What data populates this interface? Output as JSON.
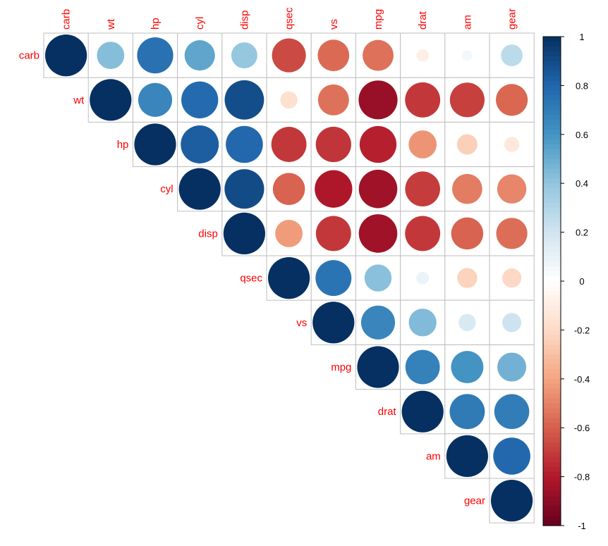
{
  "chart_data": {
    "type": "heatmap",
    "subtype": "corrplot-circle-upper",
    "title": "",
    "variables": [
      "carb",
      "wt",
      "hp",
      "cyl",
      "disp",
      "qsec",
      "vs",
      "mpg",
      "drat",
      "am",
      "gear"
    ],
    "matrix": [
      [
        1.0,
        0.43,
        0.75,
        0.53,
        0.39,
        -0.66,
        -0.57,
        -0.55,
        -0.09,
        0.06,
        0.27
      ],
      [
        0.43,
        1.0,
        0.66,
        0.78,
        0.89,
        -0.17,
        -0.55,
        -0.87,
        -0.71,
        -0.69,
        -0.58
      ],
      [
        0.75,
        0.66,
        1.0,
        0.83,
        0.79,
        -0.71,
        -0.72,
        -0.78,
        -0.45,
        -0.24,
        -0.13
      ],
      [
        0.53,
        0.78,
        0.83,
        1.0,
        0.9,
        -0.59,
        -0.81,
        -0.85,
        -0.7,
        -0.52,
        -0.49
      ],
      [
        0.39,
        0.89,
        0.79,
        0.9,
        1.0,
        -0.43,
        -0.71,
        -0.85,
        -0.71,
        -0.59,
        -0.56
      ],
      [
        -0.66,
        -0.17,
        -0.71,
        -0.59,
        -0.43,
        1.0,
        0.74,
        0.42,
        0.09,
        -0.23,
        -0.21
      ],
      [
        -0.57,
        -0.55,
        -0.72,
        -0.81,
        -0.71,
        0.74,
        1.0,
        0.66,
        0.44,
        0.17,
        0.21
      ],
      [
        -0.55,
        -0.87,
        -0.78,
        -0.85,
        -0.85,
        0.42,
        0.66,
        1.0,
        0.68,
        0.6,
        0.48
      ],
      [
        -0.09,
        -0.71,
        -0.45,
        -0.7,
        -0.71,
        0.09,
        0.44,
        0.68,
        1.0,
        0.71,
        0.7
      ],
      [
        0.06,
        -0.69,
        -0.24,
        -0.52,
        -0.59,
        -0.23,
        0.17,
        0.6,
        0.71,
        1.0,
        0.79
      ],
      [
        0.27,
        -0.58,
        -0.13,
        -0.49,
        -0.56,
        -0.21,
        0.21,
        0.48,
        0.7,
        0.79,
        1.0
      ]
    ],
    "display": "upper triangle incl. diagonal; circle area proportional to |r|",
    "colorbar": {
      "ticks": [
        "1",
        "0.8",
        "0.6",
        "0.4",
        "0.2",
        "0",
        "-0.2",
        "-0.4",
        "-0.6",
        "-0.8",
        "-1"
      ],
      "range": [
        -1,
        1
      ],
      "palette": [
        "#67001F",
        "#B2182B",
        "#D6604D",
        "#F4A582",
        "#FDDBC7",
        "#FFFFFF",
        "#D1E5F0",
        "#92C5DE",
        "#4393C3",
        "#2166AC",
        "#053061"
      ]
    },
    "label_color": "#FF0000",
    "grid_color": "#BEBEBE"
  }
}
